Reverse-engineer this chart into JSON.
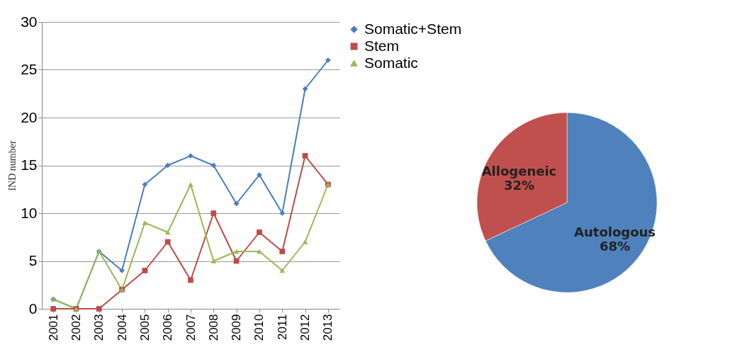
{
  "chart_data": [
    {
      "type": "line",
      "ylabel": "IND number",
      "categories": [
        "2001",
        "2002",
        "2003",
        "2004",
        "2005",
        "2006",
        "2007",
        "2008",
        "2009",
        "2010",
        "2011",
        "2012",
        "2013"
      ],
      "series": [
        {
          "name": "Somatic+Stem",
          "color": "#4a7ebb",
          "marker": "diamond",
          "values": [
            1,
            0,
            6,
            4,
            13,
            15,
            16,
            15,
            11,
            14,
            10,
            23,
            26
          ]
        },
        {
          "name": "Stem",
          "color": "#be4b48",
          "marker": "square",
          "values": [
            0,
            0,
            0,
            2,
            4,
            7,
            3,
            10,
            5,
            8,
            6,
            16,
            13
          ]
        },
        {
          "name": "Somatic",
          "color": "#98b954",
          "marker": "triangle",
          "values": [
            1,
            0,
            6,
            2,
            9,
            8,
            13,
            5,
            6,
            6,
            4,
            7,
            13
          ]
        }
      ],
      "ylim": [
        0,
        30
      ],
      "yticks": [
        0,
        5,
        10,
        15,
        20,
        25,
        30
      ],
      "grid": "y",
      "legend": "right"
    },
    {
      "type": "pie",
      "categories": [
        "Autologous",
        "Allogeneic"
      ],
      "values": [
        68,
        32
      ],
      "colors": [
        "#4f81bd",
        "#c0504d"
      ],
      "value_labels": [
        "68%",
        "32%"
      ]
    }
  ]
}
